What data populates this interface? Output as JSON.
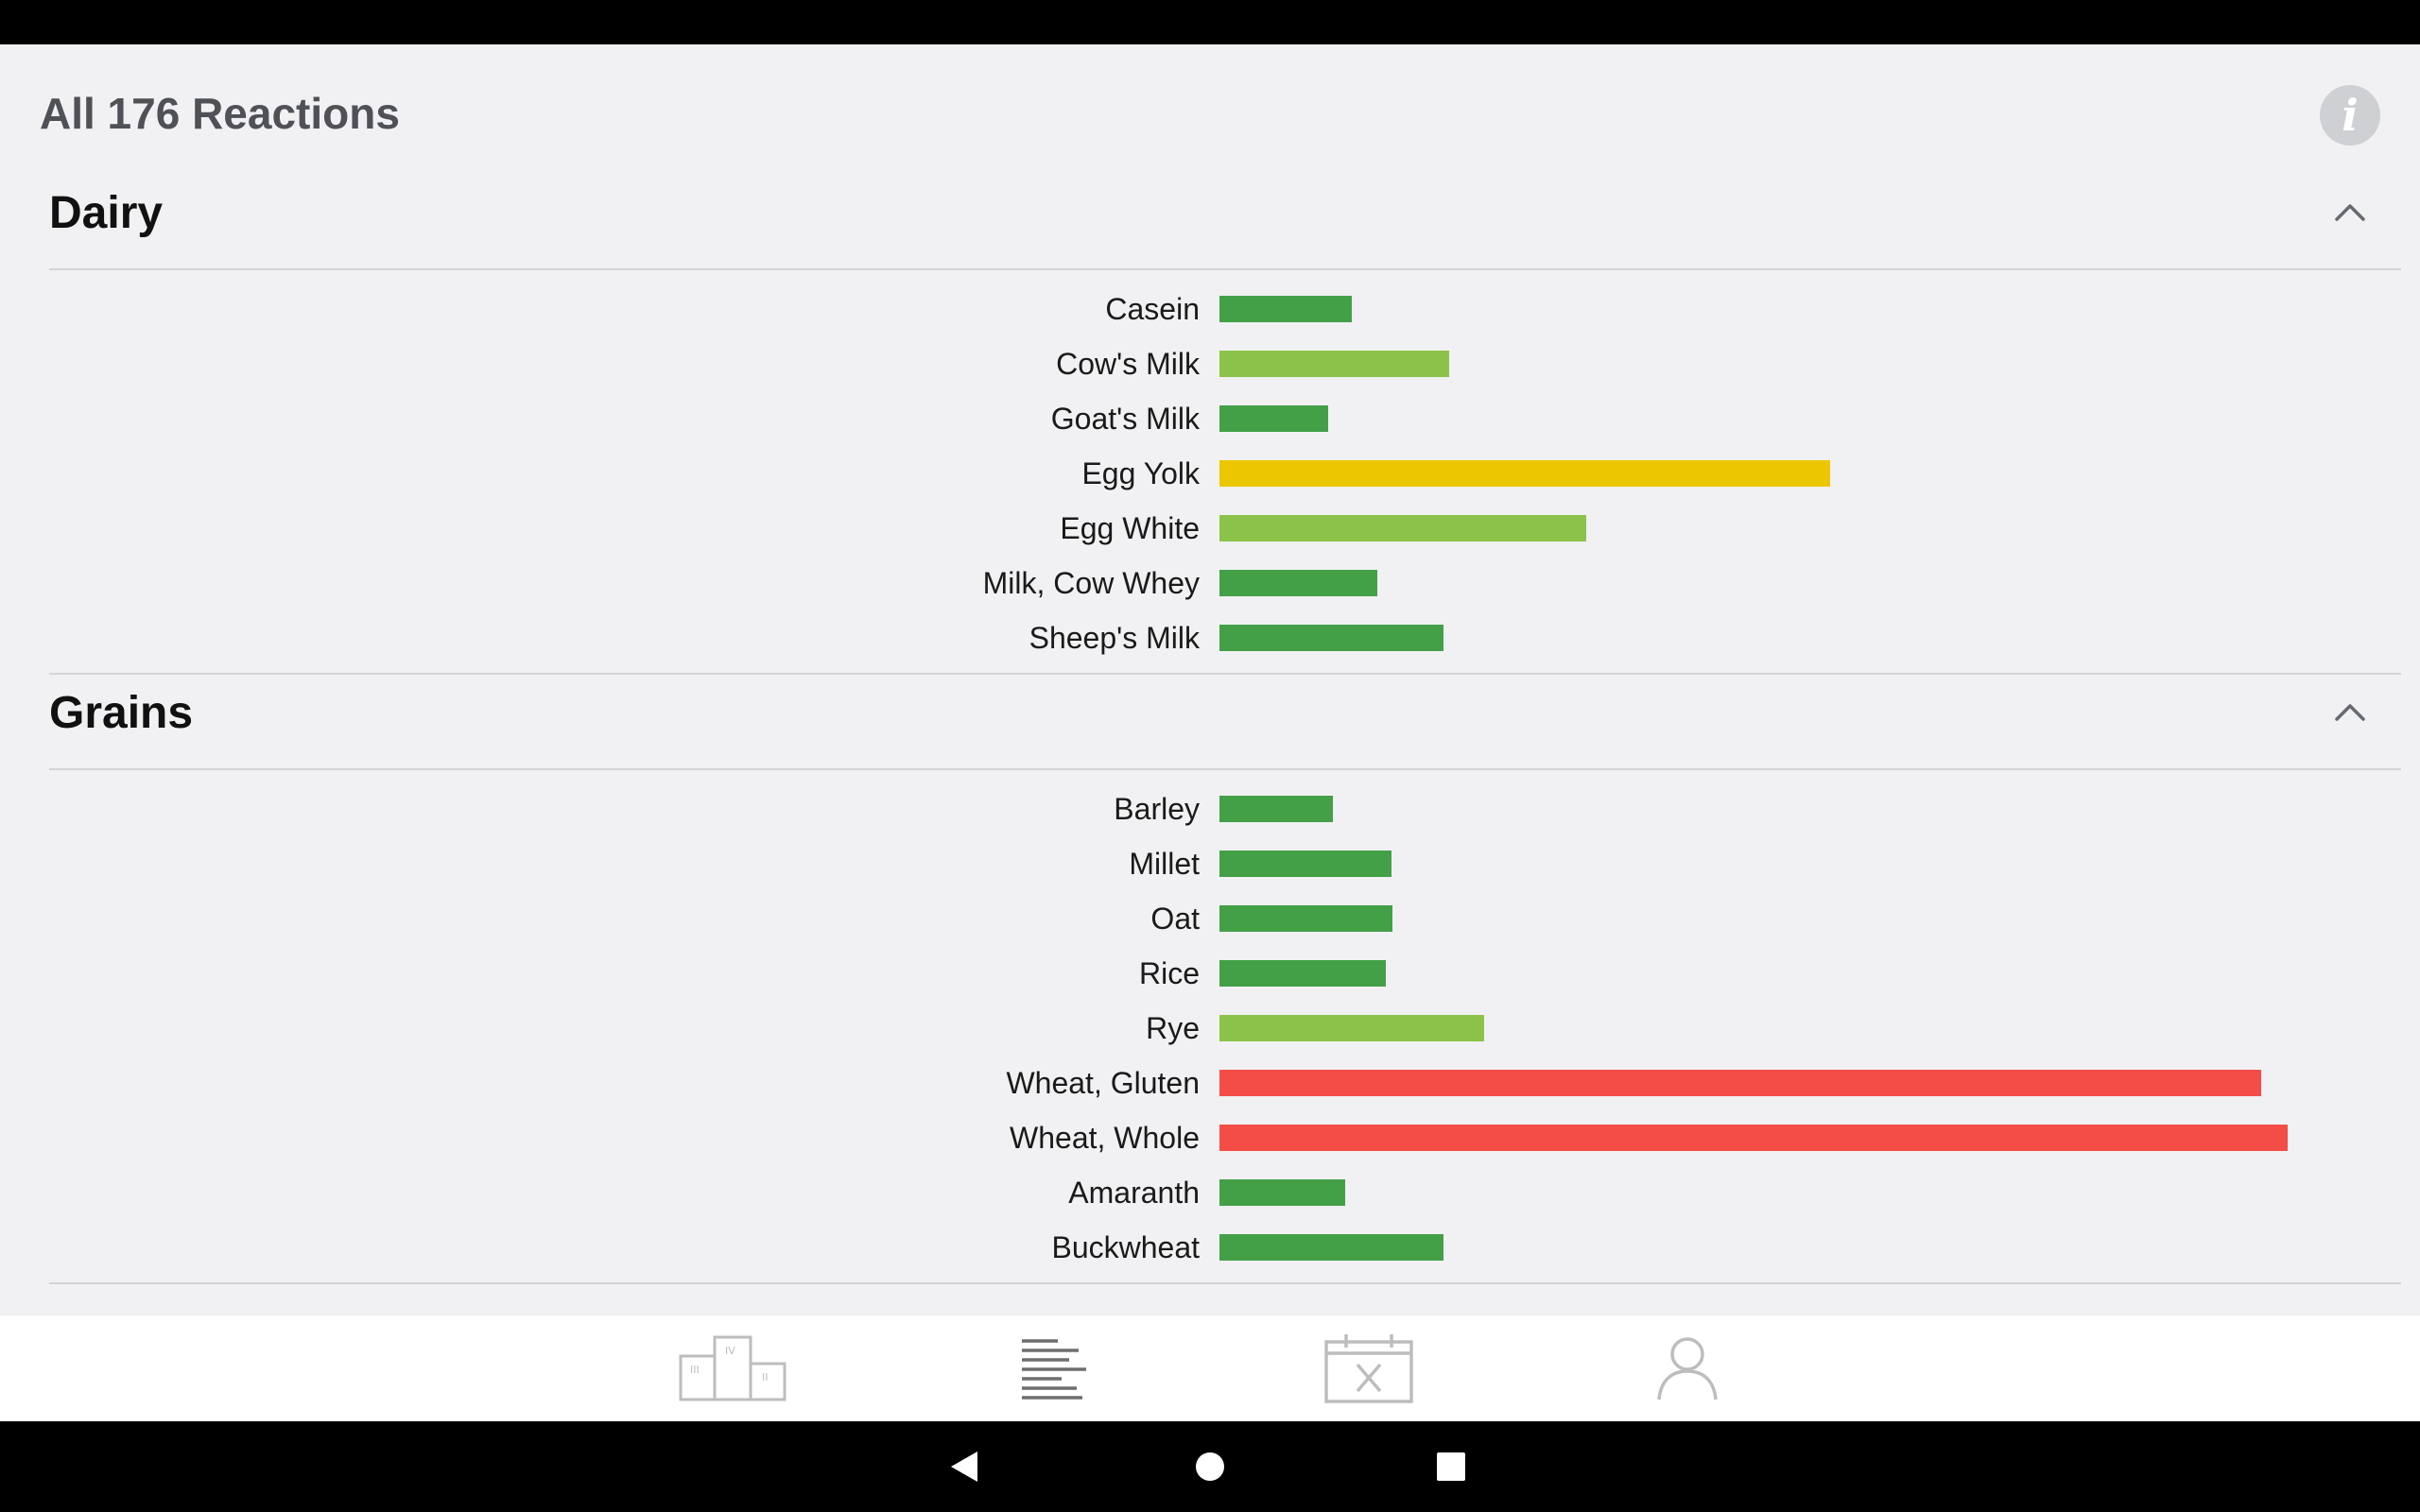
{
  "page": {
    "title": "All 176 Reactions"
  },
  "icons": {
    "info": "info-icon",
    "collapse": "chevron-up-icon",
    "info_glyph": "i"
  },
  "colors": {
    "low": "#43a047",
    "mild": "#8bc34a",
    "moderate": "#ecc700",
    "high": "#f44d48",
    "background": "#f1f1f3"
  },
  "scale_max": 100,
  "sections": [
    {
      "title": "Dairy",
      "items": [
        {
          "label": "Casein",
          "value": 12.4,
          "level": "low"
        },
        {
          "label": "Cow's Milk",
          "value": 21.5,
          "level": "mild"
        },
        {
          "label": "Goat's Milk",
          "value": 10.2,
          "level": "low"
        },
        {
          "label": "Egg Yolk",
          "value": 57.2,
          "level": "moderate"
        },
        {
          "label": "Egg White",
          "value": 34.3,
          "level": "mild"
        },
        {
          "label": "Milk, Cow Whey",
          "value": 14.8,
          "level": "low"
        },
        {
          "label": "Sheep's Milk",
          "value": 21.0,
          "level": "low"
        }
      ]
    },
    {
      "title": "Grains",
      "items": [
        {
          "label": "Barley",
          "value": 10.6,
          "level": "low"
        },
        {
          "label": "Millet",
          "value": 16.1,
          "level": "low"
        },
        {
          "label": "Oat",
          "value": 16.2,
          "level": "low"
        },
        {
          "label": "Rice",
          "value": 15.6,
          "level": "low"
        },
        {
          "label": "Rye",
          "value": 24.8,
          "level": "mild"
        },
        {
          "label": "Wheat, Gluten",
          "value": 97.5,
          "level": "high"
        },
        {
          "label": "Wheat, Whole",
          "value": 100,
          "level": "high"
        },
        {
          "label": "Amaranth",
          "value": 11.8,
          "level": "low"
        },
        {
          "label": "Buckwheat",
          "value": 21.0,
          "level": "low"
        }
      ]
    }
  ],
  "bottom_nav": [
    {
      "name": "podium-icon",
      "active": false
    },
    {
      "name": "list-icon",
      "active": true
    },
    {
      "name": "meal-calendar-icon",
      "active": false
    },
    {
      "name": "profile-icon",
      "active": false
    }
  ],
  "system_nav": [
    "back-icon",
    "home-icon",
    "recents-icon"
  ]
}
